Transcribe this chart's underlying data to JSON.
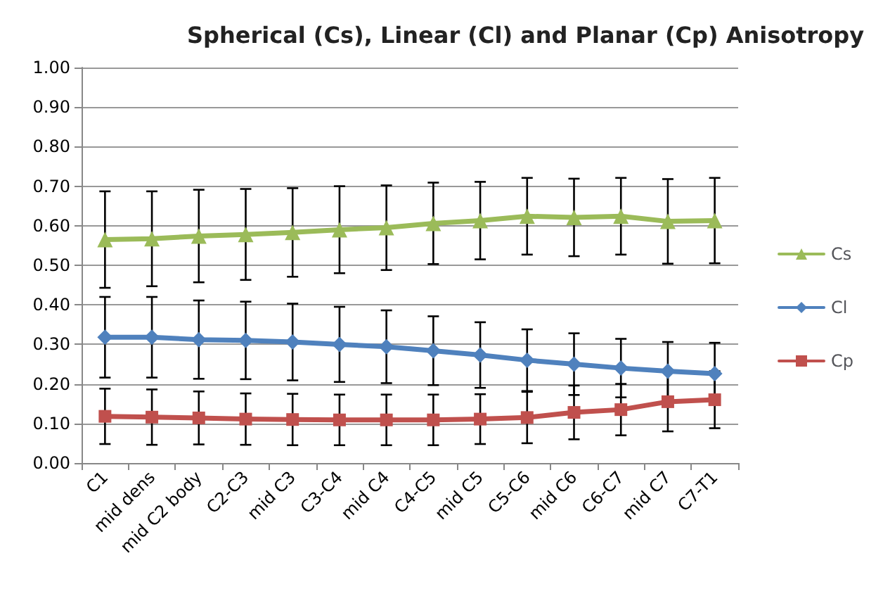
{
  "chart_data": {
    "type": "line",
    "title": "Spherical (Cs), Linear (Cl) and Planar (Cp) Anisotropy",
    "categories": [
      "C1",
      "mid dens",
      "mid C2 body",
      "C2-C3",
      "mid C3",
      "C3-C4",
      "mid C4",
      "C4-C5",
      "mid C5",
      "C5-C6",
      "mid C6",
      "C6-C7",
      "mid C7",
      "C7-T1"
    ],
    "series": [
      {
        "name": "Cs",
        "color": "#9bbb59",
        "marker": "triangle",
        "values": [
          0.565,
          0.567,
          0.574,
          0.578,
          0.583,
          0.59,
          0.595,
          0.606,
          0.613,
          0.624,
          0.621,
          0.624,
          0.611,
          0.613
        ],
        "errors": [
          0.122,
          0.12,
          0.117,
          0.115,
          0.112,
          0.11,
          0.107,
          0.103,
          0.098,
          0.097,
          0.098,
          0.097,
          0.107,
          0.108
        ]
      },
      {
        "name": "Cl",
        "color": "#4f81bd",
        "marker": "diamond",
        "values": [
          0.318,
          0.318,
          0.312,
          0.31,
          0.306,
          0.3,
          0.294,
          0.284,
          0.273,
          0.26,
          0.25,
          0.24,
          0.232,
          0.226
        ],
        "errors": [
          0.102,
          0.102,
          0.099,
          0.098,
          0.097,
          0.095,
          0.092,
          0.087,
          0.083,
          0.078,
          0.078,
          0.074,
          0.074,
          0.078
        ]
      },
      {
        "name": "Cp",
        "color": "#c0504d",
        "marker": "square",
        "values": [
          0.118,
          0.116,
          0.114,
          0.111,
          0.11,
          0.109,
          0.109,
          0.109,
          0.111,
          0.115,
          0.128,
          0.135,
          0.155,
          0.16
        ],
        "errors": [
          0.07,
          0.07,
          0.067,
          0.065,
          0.065,
          0.064,
          0.064,
          0.064,
          0.063,
          0.065,
          0.068,
          0.065,
          0.075,
          0.072
        ]
      }
    ],
    "ylim": [
      0,
      1
    ],
    "yticks": [
      {
        "value": 0,
        "label": "0.00"
      },
      {
        "value": 0.1,
        "label": "0.10"
      },
      {
        "value": 0.2,
        "label": "0.20"
      },
      {
        "value": 0.3,
        "label": "0.30"
      },
      {
        "value": 0.4,
        "label": "0.40"
      },
      {
        "value": 0.5,
        "label": "0.50"
      },
      {
        "value": 0.6,
        "label": "0.60"
      },
      {
        "value": 0.7,
        "label": "0.70"
      },
      {
        "value": 0.8,
        "label": "0.80"
      },
      {
        "value": 0.9,
        "label": "0.90"
      },
      {
        "value": 1,
        "label": "1.00"
      }
    ],
    "grid": "y",
    "legend": "right",
    "line_style": "solid"
  }
}
